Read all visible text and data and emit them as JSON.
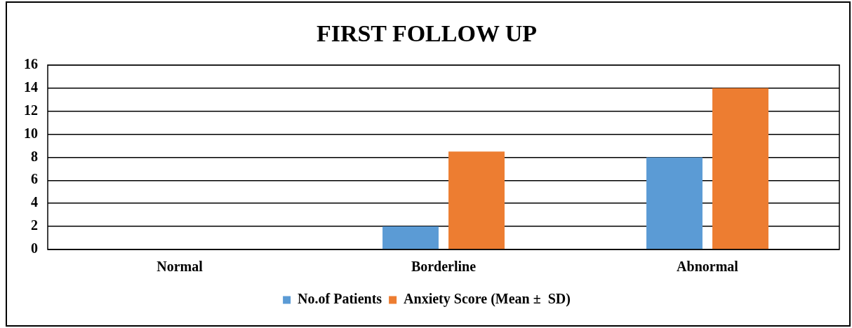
{
  "chart_data": {
    "type": "bar",
    "title": "FIRST FOLLOW UP",
    "categories": [
      "Normal",
      "Borderline",
      "Abnormal"
    ],
    "series": [
      {
        "name": "No.of Patients",
        "color": "#5b9bd5",
        "values": [
          0,
          2,
          8
        ]
      },
      {
        "name": "Anxiety Score (Mean ±  SD)",
        "color": "#ed7d31",
        "values": [
          0,
          8.5,
          14
        ]
      }
    ],
    "ylim": [
      0,
      16
    ],
    "yticks": [
      0,
      2,
      4,
      6,
      8,
      10,
      12,
      14,
      16
    ],
    "grid": "y",
    "legend": "bottom"
  }
}
